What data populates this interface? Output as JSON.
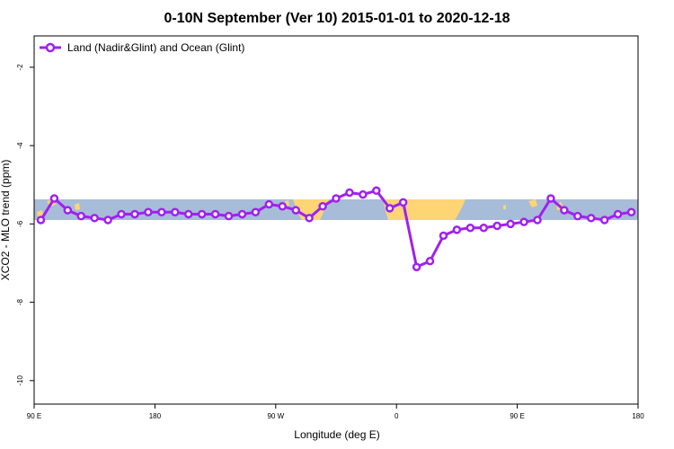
{
  "chart_data": {
    "type": "line",
    "title": "0-10N September (Ver 10)   2015-01-01 to 2020-12-18",
    "xlabel": "Longitude (deg E)",
    "ylabel": "XCO2 - MLO trend (ppm)",
    "xlim": [
      90,
      270
    ],
    "ylim": [
      -10.6,
      -1.2
    ],
    "x_ticks": [
      {
        "value": 90,
        "label": "90 E"
      },
      {
        "value": 126,
        "label": "180"
      },
      {
        "value": 162,
        "label": "90 W"
      },
      {
        "value": 198,
        "label": "0"
      },
      {
        "value": 234,
        "label": "90 E"
      },
      {
        "value": 270,
        "label": "180"
      }
    ],
    "y_ticks": [
      {
        "value": -2,
        "label": "-2"
      },
      {
        "value": -4,
        "label": "-4"
      },
      {
        "value": -6,
        "label": "-6"
      },
      {
        "value": -8,
        "label": "-8"
      },
      {
        "value": -10,
        "label": "-10"
      }
    ],
    "legend_position": "top-left",
    "series": [
      {
        "name": "Land (Nadir&Glint) and Ocean (Glint)",
        "color": "#a020f0",
        "x": [
          92,
          96,
          100,
          104,
          108,
          112,
          116,
          120,
          124,
          128,
          132,
          136,
          140,
          144,
          148,
          152,
          156,
          160,
          164,
          168,
          172,
          176,
          180,
          184,
          188,
          192,
          196,
          200,
          204,
          208,
          212,
          216,
          220,
          224,
          228,
          232,
          236,
          240,
          244,
          248,
          252,
          256,
          260,
          264,
          268
        ],
        "values": [
          -5.9,
          -5.35,
          -5.65,
          -5.8,
          -5.85,
          -5.9,
          -5.75,
          -5.75,
          -5.7,
          -5.7,
          -5.7,
          -5.75,
          -5.75,
          -5.75,
          -5.8,
          -5.75,
          -5.7,
          -5.5,
          -5.55,
          -5.65,
          -5.85,
          -5.55,
          -5.35,
          -5.2,
          -5.25,
          -5.15,
          -5.6,
          -5.45,
          -7.1,
          -6.95,
          -6.3,
          -6.15,
          -6.1,
          -6.1,
          -6.05,
          -6.0,
          -5.95,
          -5.9,
          -5.35,
          -5.65,
          -5.8,
          -5.85,
          -5.9,
          -5.75,
          -5.7
        ]
      }
    ]
  },
  "background": {
    "ocean_color": "#a7bcd8",
    "land_color": "#fdd575",
    "band_latitude": "0-10N"
  }
}
